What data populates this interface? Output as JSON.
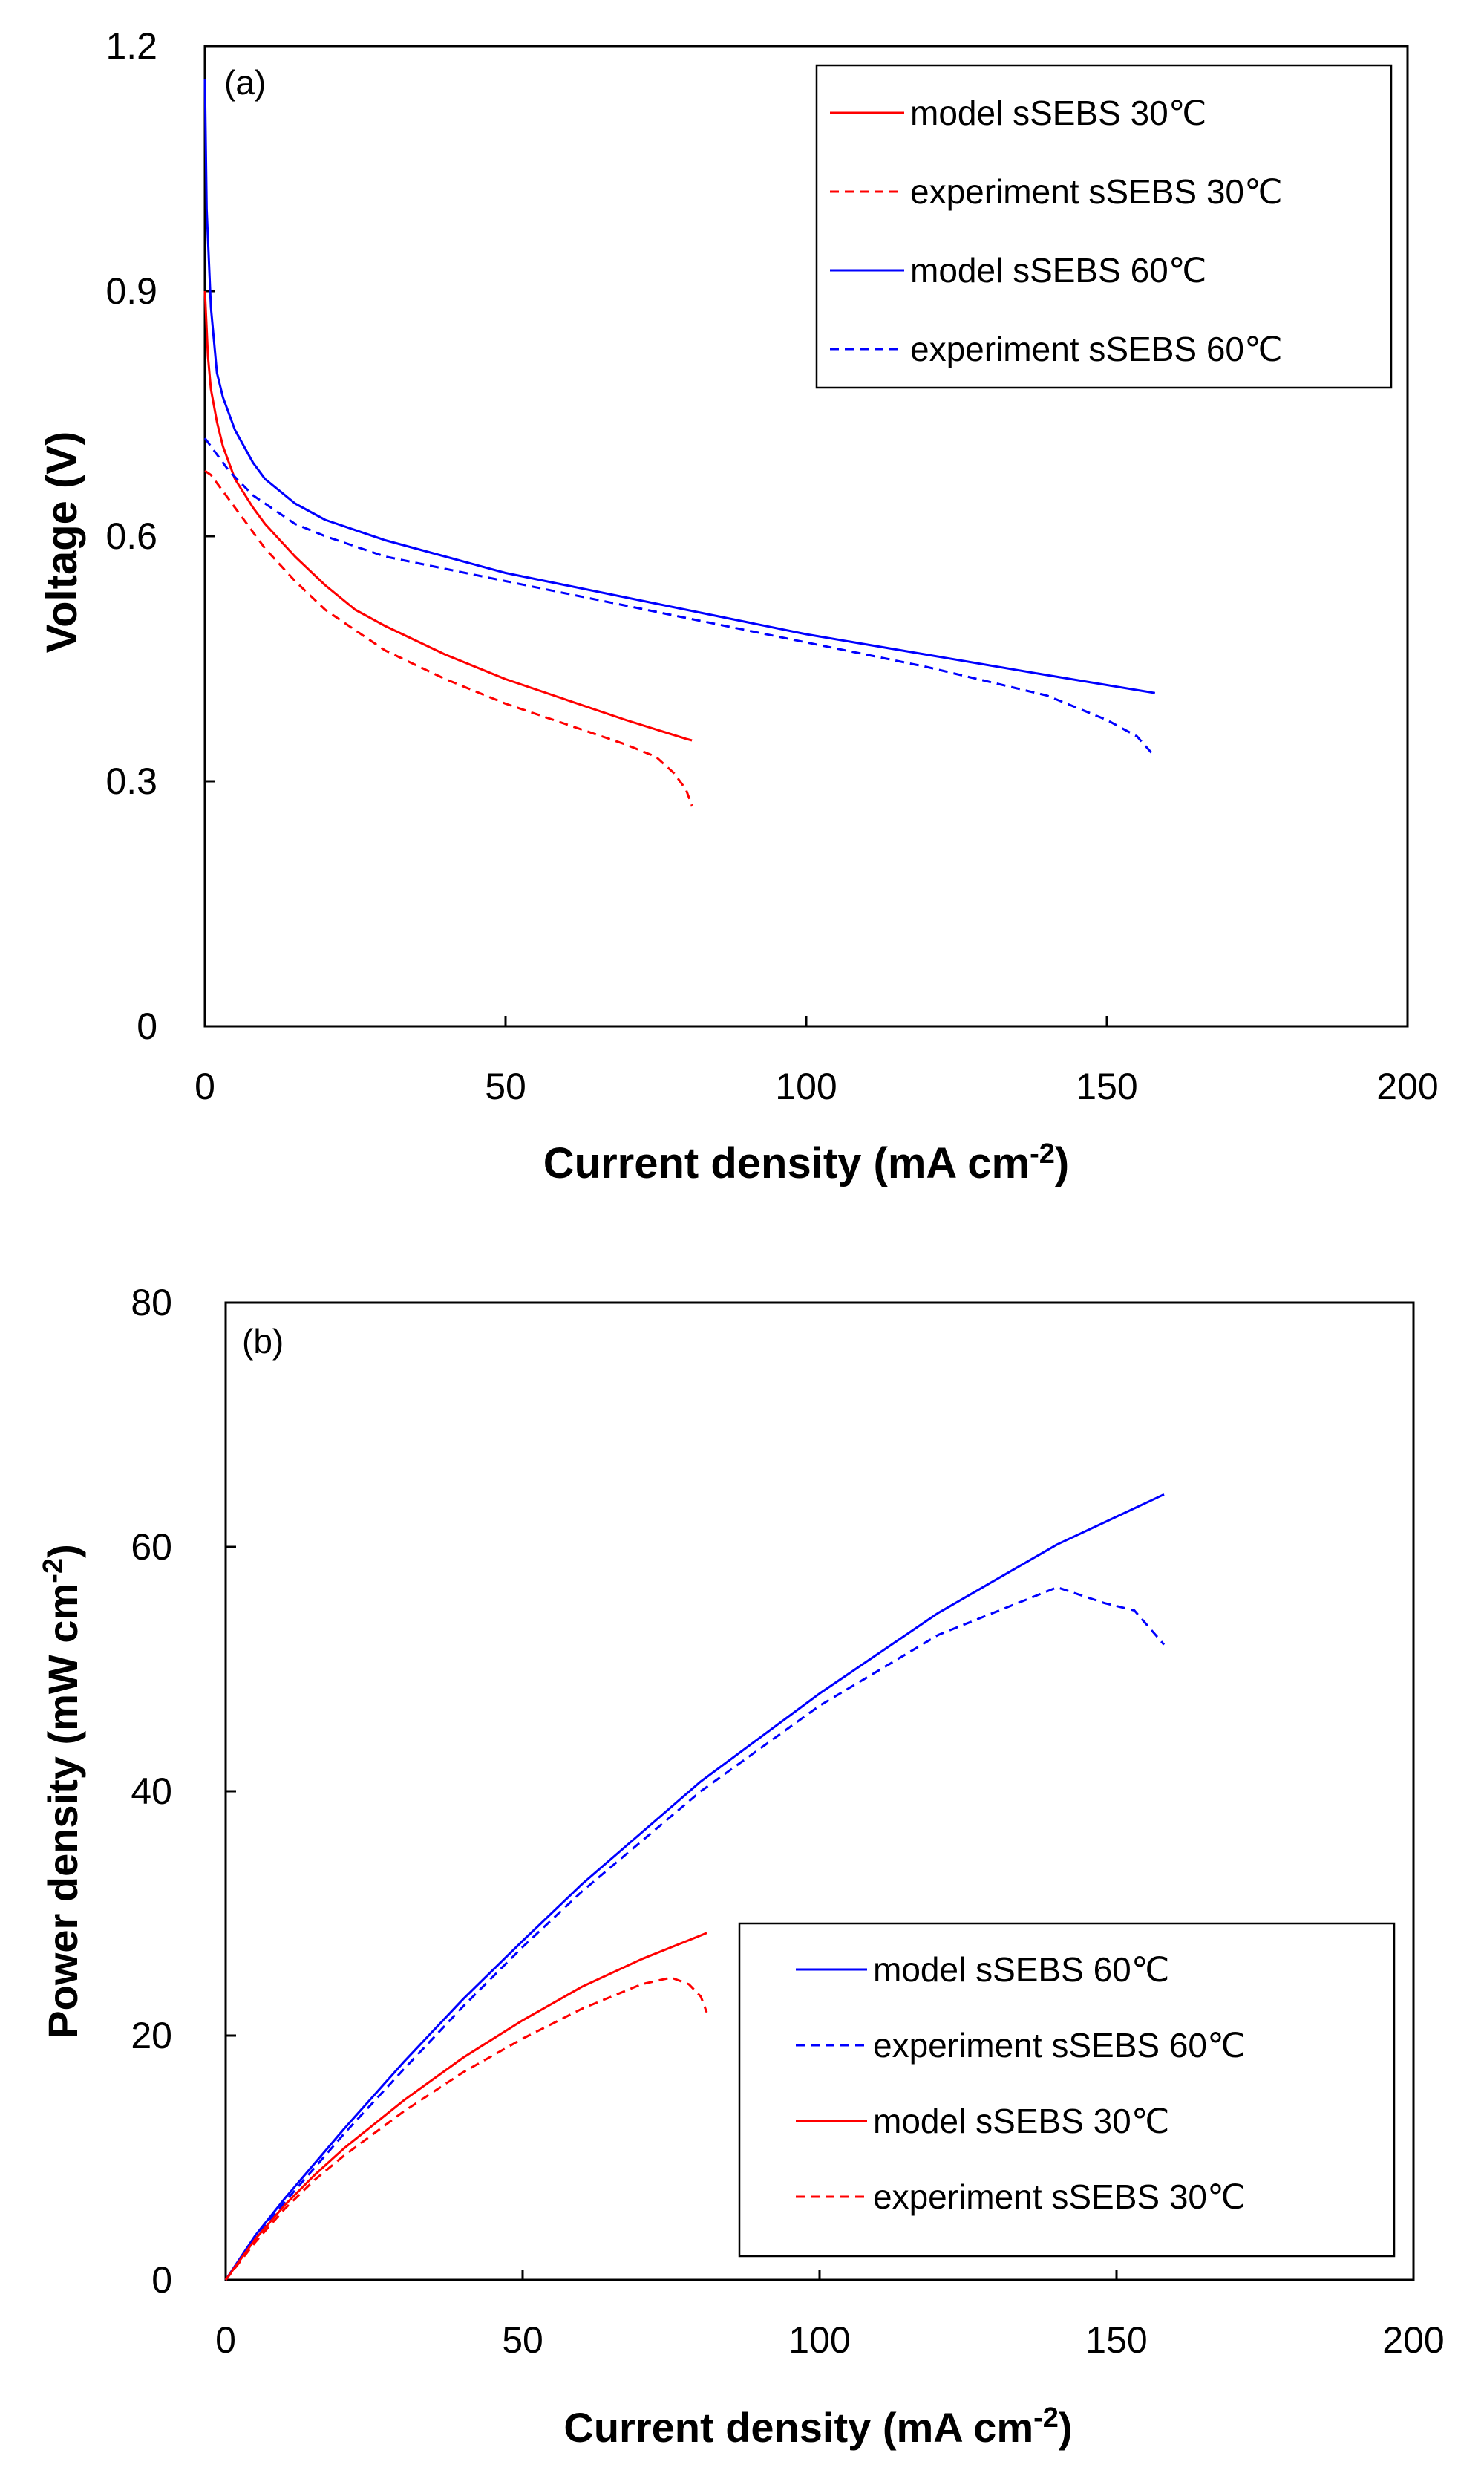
{
  "chart_data": [
    {
      "type": "line",
      "panel_label": "(a)",
      "xlabel": "Current density (mA cm",
      "xlabel_sup": "-2",
      "xlabel_end": ")",
      "ylabel": "Voltage (V)",
      "xlim": [
        0,
        200
      ],
      "ylim": [
        0,
        1.2
      ],
      "xticks": [
        "0",
        "50",
        "100",
        "150",
        "200"
      ],
      "xtick_values": [
        0,
        50,
        100,
        150,
        200
      ],
      "yticks": [
        "0",
        "0.3",
        "0.6",
        "0.9",
        "1.2"
      ],
      "ytick_values": [
        0,
        0.3,
        0.6,
        0.9,
        1.2
      ],
      "legend_position": "top-right",
      "series": [
        {
          "name": "model sSEBS 30℃",
          "color": "#ff0000",
          "dash": "solid",
          "x": [
            0,
            0.5,
            1,
            2,
            3,
            5,
            8,
            10,
            15,
            20,
            25,
            30,
            40,
            50,
            60,
            70,
            80,
            81
          ],
          "y": [
            0.9,
            0.82,
            0.78,
            0.74,
            0.71,
            0.67,
            0.635,
            0.615,
            0.575,
            0.54,
            0.51,
            0.49,
            0.455,
            0.425,
            0.4,
            0.375,
            0.352,
            0.35
          ]
        },
        {
          "name": "experiment sSEBS 30℃",
          "color": "#ff0000",
          "dash": "dashed",
          "x": [
            0,
            1,
            2,
            4,
            6,
            8,
            10,
            15,
            20,
            25,
            30,
            40,
            50,
            60,
            70,
            75,
            78,
            80,
            81
          ],
          "y": [
            0.68,
            0.675,
            0.665,
            0.645,
            0.625,
            0.605,
            0.585,
            0.545,
            0.51,
            0.485,
            0.46,
            0.425,
            0.395,
            0.37,
            0.345,
            0.33,
            0.31,
            0.29,
            0.27
          ]
        },
        {
          "name": "model sSEBS 60℃",
          "color": "#0000ff",
          "dash": "solid",
          "x": [
            0,
            0.3,
            1,
            2,
            3,
            5,
            8,
            10,
            15,
            20,
            30,
            40,
            50,
            60,
            80,
            100,
            120,
            140,
            158
          ],
          "y": [
            1.16,
            1.0,
            0.88,
            0.8,
            0.77,
            0.73,
            0.69,
            0.67,
            0.64,
            0.62,
            0.595,
            0.575,
            0.555,
            0.54,
            0.51,
            0.48,
            0.455,
            0.43,
            0.408
          ]
        },
        {
          "name": "experiment sSEBS 60℃",
          "color": "#0000ff",
          "dash": "dashed",
          "x": [
            0,
            1,
            2,
            4,
            6,
            8,
            10,
            15,
            20,
            30,
            40,
            50,
            60,
            80,
            100,
            120,
            140,
            150,
            155,
            158
          ],
          "y": [
            0.72,
            0.71,
            0.7,
            0.68,
            0.665,
            0.65,
            0.64,
            0.615,
            0.6,
            0.575,
            0.56,
            0.545,
            0.53,
            0.5,
            0.47,
            0.44,
            0.405,
            0.375,
            0.355,
            0.33
          ]
        }
      ]
    },
    {
      "type": "line",
      "panel_label": "(b)",
      "xlabel": "Current density (mA cm",
      "xlabel_sup": "-2",
      "xlabel_end": ")",
      "ylabel": "Power density (mW cm",
      "ylabel_sup": "-2",
      "ylabel_end": ")",
      "xlim": [
        0,
        200
      ],
      "ylim": [
        0,
        80
      ],
      "xticks": [
        "0",
        "50",
        "100",
        "150",
        "200"
      ],
      "xtick_values": [
        0,
        50,
        100,
        150,
        200
      ],
      "yticks": [
        "0",
        "20",
        "40",
        "60",
        "80"
      ],
      "ytick_values": [
        0,
        20,
        40,
        60,
        80
      ],
      "legend_position": "bottom-right",
      "series": [
        {
          "name": "model sSEBS 60℃",
          "color": "#0000ff",
          "dash": "solid",
          "x": [
            0,
            5,
            10,
            20,
            30,
            40,
            50,
            60,
            80,
            100,
            120,
            140,
            158
          ],
          "y": [
            0,
            3.65,
            6.7,
            12.4,
            17.85,
            23.0,
            27.75,
            32.4,
            40.8,
            48.0,
            54.6,
            60.2,
            64.3
          ]
        },
        {
          "name": "experiment sSEBS 60℃",
          "color": "#0000ff",
          "dash": "dashed",
          "x": [
            0,
            5,
            10,
            20,
            30,
            40,
            50,
            60,
            80,
            100,
            120,
            140,
            148,
            153,
            158
          ],
          "y": [
            0,
            3.4,
            6.4,
            12.0,
            17.25,
            22.4,
            27.25,
            31.8,
            40.0,
            47.0,
            52.8,
            56.7,
            55.4,
            54.8,
            52.0
          ]
        },
        {
          "name": "model sSEBS 30℃",
          "color": "#ff0000",
          "dash": "solid",
          "x": [
            0,
            5,
            10,
            15,
            20,
            30,
            40,
            50,
            60,
            70,
            80,
            81
          ],
          "y": [
            0,
            3.35,
            6.15,
            8.6,
            10.8,
            14.7,
            18.2,
            21.25,
            24.0,
            26.25,
            28.2,
            28.4
          ]
        },
        {
          "name": "experiment sSEBS 30℃",
          "color": "#ff0000",
          "dash": "dashed",
          "x": [
            0,
            5,
            10,
            15,
            20,
            30,
            40,
            50,
            60,
            70,
            75,
            78,
            80,
            81
          ],
          "y": [
            0,
            3.1,
            5.85,
            8.2,
            10.2,
            13.8,
            17.0,
            19.75,
            22.2,
            24.2,
            24.75,
            24.2,
            23.2,
            21.9
          ]
        }
      ]
    }
  ]
}
